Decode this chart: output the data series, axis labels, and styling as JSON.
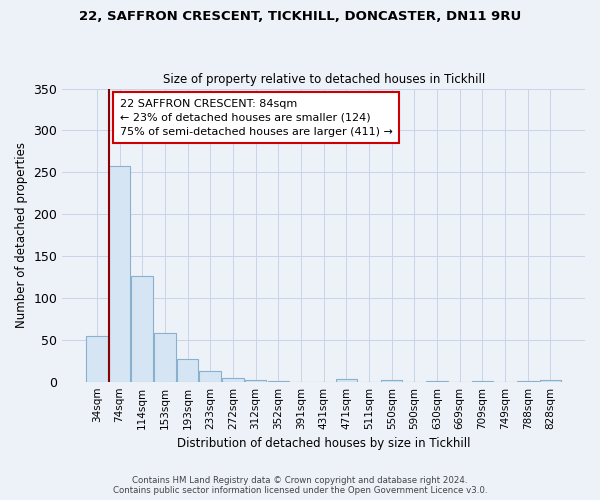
{
  "title": "22, SAFFRON CRESCENT, TICKHILL, DONCASTER, DN11 9RU",
  "subtitle": "Size of property relative to detached houses in Tickhill",
  "xlabel": "Distribution of detached houses by size in Tickhill",
  "ylabel": "Number of detached properties",
  "bar_labels": [
    "34sqm",
    "74sqm",
    "114sqm",
    "153sqm",
    "193sqm",
    "233sqm",
    "272sqm",
    "312sqm",
    "352sqm",
    "391sqm",
    "431sqm",
    "471sqm",
    "511sqm",
    "550sqm",
    "590sqm",
    "630sqm",
    "669sqm",
    "709sqm",
    "749sqm",
    "788sqm",
    "828sqm"
  ],
  "bar_values": [
    55,
    257,
    126,
    58,
    27,
    13,
    4,
    2,
    1,
    0,
    0,
    3,
    0,
    2,
    0,
    1,
    0,
    1,
    0,
    1,
    2
  ],
  "bar_facecolor": "#d6e5f3",
  "bar_edgecolor": "#8ab0d0",
  "highlight_line_color": "#8b0000",
  "ylim": [
    0,
    350
  ],
  "yticks": [
    0,
    50,
    100,
    150,
    200,
    250,
    300,
    350
  ],
  "annotation_line1": "22 SAFFRON CRESCENT: 84sqm",
  "annotation_line2": "← 23% of detached houses are smaller (124)",
  "annotation_line3": "75% of semi-detached houses are larger (411) →",
  "annotation_box_color": "#ffffff",
  "annotation_box_edge": "#cc0000",
  "footer_line1": "Contains HM Land Registry data © Crown copyright and database right 2024.",
  "footer_line2": "Contains public sector information licensed under the Open Government Licence v3.0.",
  "background_color": "#edf1f8",
  "grid_color": "#c8d4e8"
}
